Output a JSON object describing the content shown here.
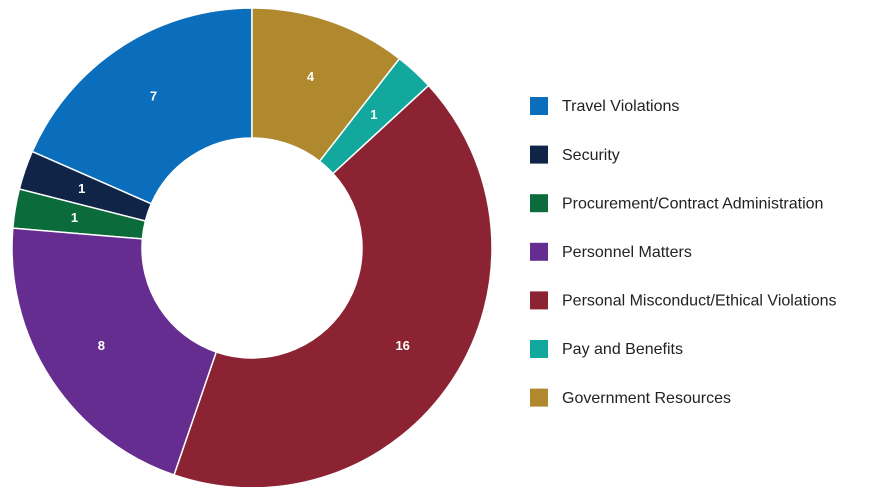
{
  "chart_data": {
    "type": "donut",
    "categories": [
      "Travel Violations",
      "Security",
      "Procurement/Contract Administration",
      "Personnel Matters",
      "Personal Misconduct/Ethical Violations",
      "Pay and Benefits",
      "Government Resources"
    ],
    "values": [
      7,
      1,
      1,
      8,
      16,
      1,
      4
    ],
    "colors": [
      "#0a6ebd",
      "#0f2447",
      "#0b6b3a",
      "#662d91",
      "#8b2332",
      "#12a89d",
      "#b0892e"
    ],
    "legend": "right"
  }
}
